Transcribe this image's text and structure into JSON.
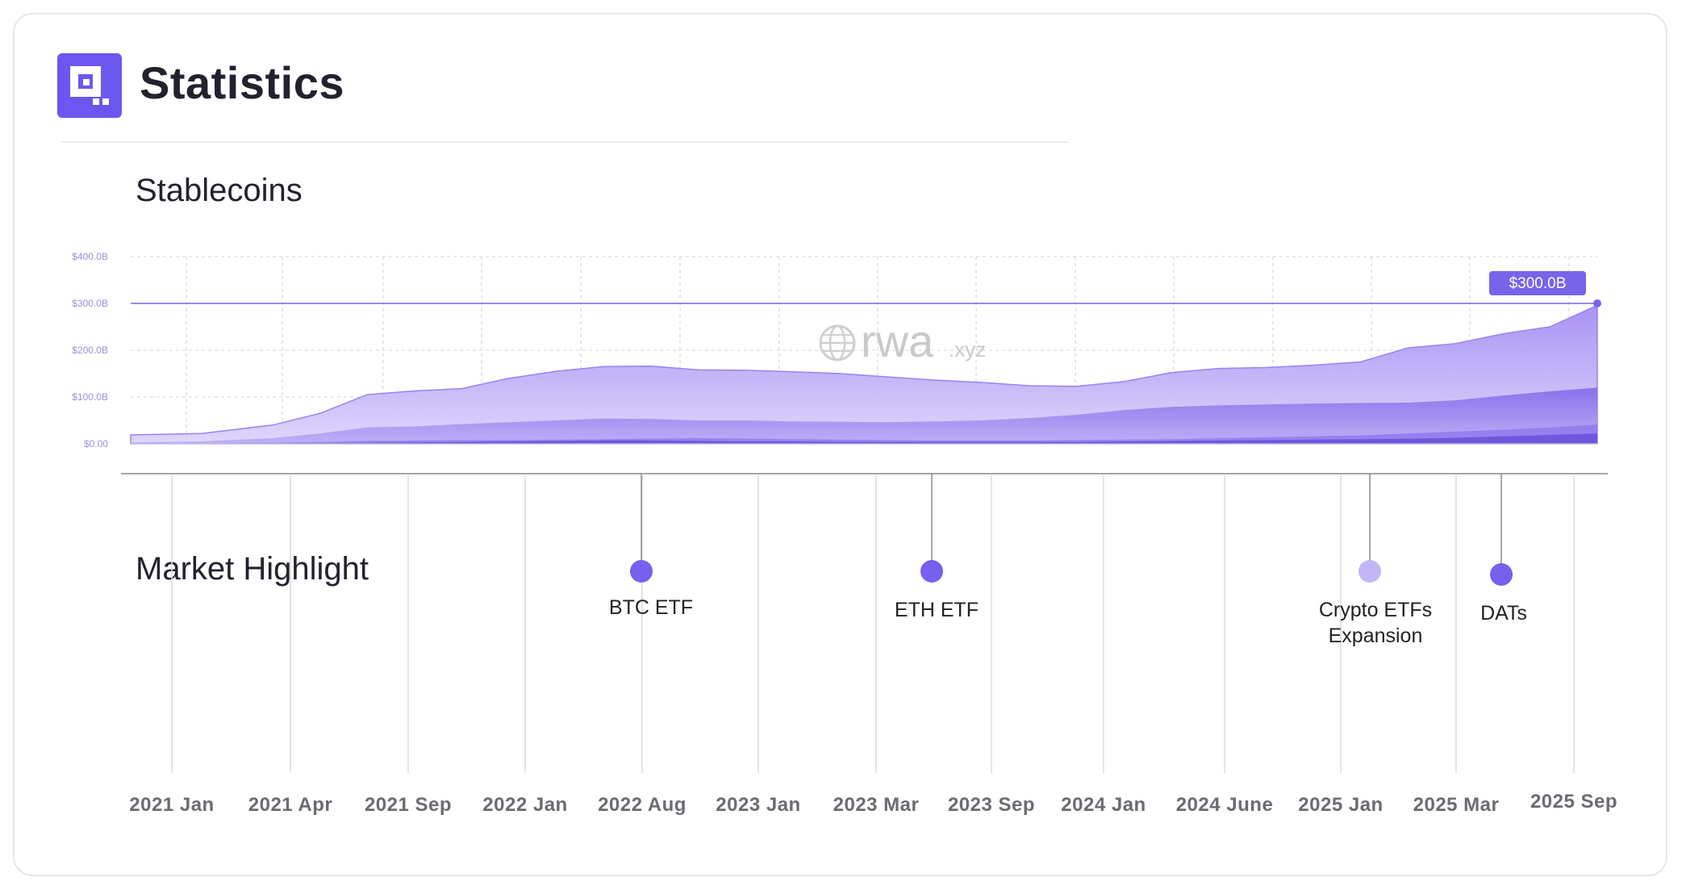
{
  "header": {
    "title": "Statistics",
    "logo_color": "#6b56f0"
  },
  "chart_data": {
    "type": "area",
    "title": "Stablecoins",
    "x_range": [
      "2020-07",
      "2025-09"
    ],
    "x_labels": [
      "2021 Jan",
      "2021 Apr",
      "2021 Sep",
      "2022 Jan",
      "2022 Aug",
      "2023 Jan",
      "2023 Mar",
      "2023 Sep",
      "2024 Jan",
      "2024 June",
      "2025 Jan",
      "2025 Mar",
      "2025 Sep"
    ],
    "y_ticks": [
      "$400.0B",
      "$300.0B",
      "$200.0B",
      "$100.0B",
      "$0.00"
    ],
    "ylim": [
      0,
      400
    ],
    "grid": true,
    "reference_line": {
      "value": 300,
      "label": "$300.0B"
    },
    "watermark": {
      "main": "rwa",
      "suffix": ".xyz"
    },
    "colors": {
      "total": "#b7a7f7",
      "mid": "#8f78ee",
      "low": "#6f58e2",
      "line": "#7764ea"
    },
    "x": [
      "2020-07",
      "2020-10",
      "2021-01",
      "2021-03",
      "2021-05",
      "2021-07",
      "2021-09",
      "2021-11",
      "2022-01",
      "2022-03",
      "2022-05",
      "2022-07",
      "2022-09",
      "2022-11",
      "2023-01",
      "2023-03",
      "2023-05",
      "2023-07",
      "2023-09",
      "2023-11",
      "2024-01",
      "2024-03",
      "2024-05",
      "2024-07",
      "2024-09",
      "2024-11",
      "2025-01",
      "2025-03",
      "2025-05",
      "2025-07",
      "2025-09"
    ],
    "series": [
      {
        "values": [
          19,
          22,
          40,
          65,
          105,
          113,
          118,
          140,
          155,
          165,
          166,
          158,
          157,
          154,
          150,
          143,
          136,
          131,
          124,
          123,
          133,
          152,
          161,
          163,
          168,
          175,
          205,
          214,
          235,
          250,
          296
        ]
      },
      {
        "values": [
          3,
          5,
          12,
          22,
          35,
          37,
          42,
          46,
          50,
          54,
          53,
          50,
          50,
          48,
          47,
          46,
          48,
          50,
          55,
          62,
          72,
          79,
          82,
          84,
          86,
          87,
          88,
          93,
          103,
          112,
          120
        ]
      },
      {
        "values": [
          1,
          1,
          2,
          4,
          6,
          7,
          8,
          8,
          9,
          10,
          11,
          12,
          11,
          10,
          9,
          8,
          7,
          7,
          7,
          8,
          9,
          10,
          12,
          14,
          16,
          18,
          22,
          26,
          30,
          35,
          41
        ]
      },
      {
        "values": [
          0,
          0,
          1,
          1,
          2,
          3,
          4,
          5,
          6,
          7,
          7,
          6,
          5,
          5,
          4,
          4,
          4,
          4,
          4,
          4,
          5,
          6,
          7,
          8,
          9,
          10,
          11,
          13,
          16,
          19,
          22
        ]
      }
    ]
  },
  "market_highlight": {
    "title": "Market Highlight",
    "events": [
      {
        "label": "BTC ETF",
        "color": "#7560f0"
      },
      {
        "label": "ETH ETF",
        "color": "#7560f0"
      },
      {
        "label": "Crypto ETFs\nExpansion",
        "color": "#c2b6f7"
      },
      {
        "label": "DATs",
        "color": "#7560f0"
      }
    ]
  }
}
